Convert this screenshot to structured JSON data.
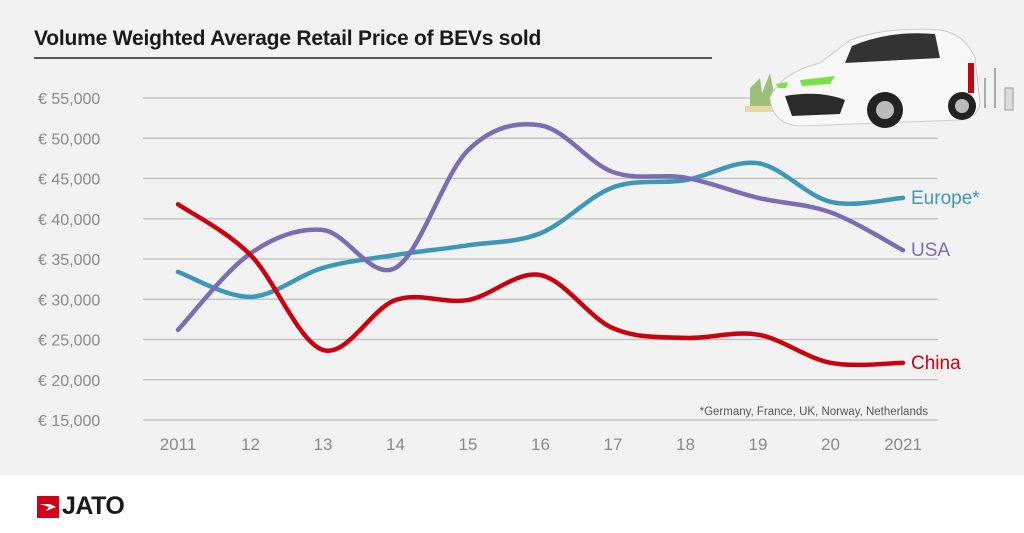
{
  "chart_data": {
    "type": "line",
    "title": "Volume Weighted Average Retail Price of BEVs sold",
    "x": [
      "2011",
      "12",
      "13",
      "14",
      "15",
      "16",
      "17",
      "18",
      "19",
      "20",
      "2021"
    ],
    "ylim": [
      15000,
      55000
    ],
    "yticks": [
      "€ 15,000",
      "€ 20,000",
      "€ 25,000",
      "€ 30,000",
      "€ 35,000",
      "€ 40,000",
      "€ 45,000",
      "€ 50,000",
      "€ 55,000"
    ],
    "ytick_values": [
      15000,
      20000,
      25000,
      30000,
      35000,
      40000,
      45000,
      50000,
      55000
    ],
    "grid": true,
    "series": [
      {
        "name": "Europe*",
        "color": "#3d97b8",
        "values": [
          33400,
          30300,
          33900,
          35500,
          36700,
          38200,
          43900,
          44800,
          46900,
          42100,
          42600
        ]
      },
      {
        "name": "USA",
        "color": "#7b6db3",
        "values": [
          26200,
          35700,
          38600,
          33900,
          48500,
          51600,
          45800,
          45100,
          42600,
          40800,
          36100
        ]
      },
      {
        "name": "China",
        "color": "#c9000e",
        "values": [
          41800,
          35500,
          23700,
          29900,
          29900,
          33000,
          26400,
          25200,
          25600,
          22100,
          22100
        ]
      }
    ],
    "footnote": "*Germany, France, UK, Norway, Netherlands"
  },
  "brand": {
    "logo_text": "JATO",
    "logo_color": "#d0021b"
  }
}
